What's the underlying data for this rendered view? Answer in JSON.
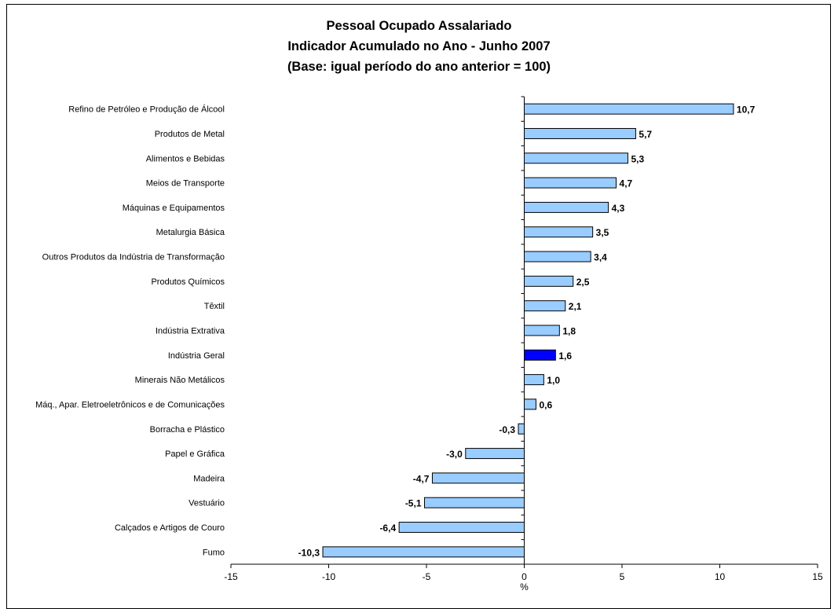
{
  "chart_data": {
    "type": "bar",
    "orientation": "horizontal",
    "title": [
      "Pessoal Ocupado Assalariado",
      "Indicador Acumulado no Ano - Junho 2007",
      "(Base: igual período do ano anterior = 100)"
    ],
    "xlabel": "%",
    "ylabel": "",
    "xlim": [
      -15,
      15
    ],
    "xticks": [
      "-15",
      "-10",
      "-5",
      "0",
      "5",
      "10",
      "15"
    ],
    "grid": false,
    "legend": "none",
    "categories": [
      "Refino de Petróleo e Produção de Álcool",
      "Produtos de Metal",
      "Alimentos e Bebidas",
      "Meios de Transporte",
      "Máquinas e Equipamentos",
      "Metalurgia Básica",
      "Outros Produtos da Indústria de Transformação",
      "Produtos Químicos",
      "Têxtil",
      "Indústria Extrativa",
      "Indústria Geral",
      "Minerais Não Metálicos",
      "Máq., Apar. Eletroeletrônicos e de Comunicações",
      "Borracha e Plástico",
      "Papel e Gráfica",
      "Madeira",
      "Vestuário",
      "Calçados e Artigos de Couro",
      "Fumo"
    ],
    "values": [
      10.7,
      5.7,
      5.3,
      4.7,
      4.3,
      3.5,
      3.4,
      2.5,
      2.1,
      1.8,
      1.6,
      1.0,
      0.6,
      -0.3,
      -3.0,
      -4.7,
      -5.1,
      -6.4,
      -10.3
    ],
    "value_labels": [
      "10,7",
      "5,7",
      "5,3",
      "4,7",
      "4,3",
      "3,5",
      "3,4",
      "2,5",
      "2,1",
      "1,8",
      "1,6",
      "1,0",
      "0,6",
      "-0,3",
      "-3,0",
      "-4,7",
      "-5,1",
      "-6,4",
      "-10,3"
    ],
    "highlight_category": "Indústria Geral",
    "colors": {
      "bar": "#99ccff",
      "highlight": "#0000ff",
      "outline": "#000000"
    }
  }
}
